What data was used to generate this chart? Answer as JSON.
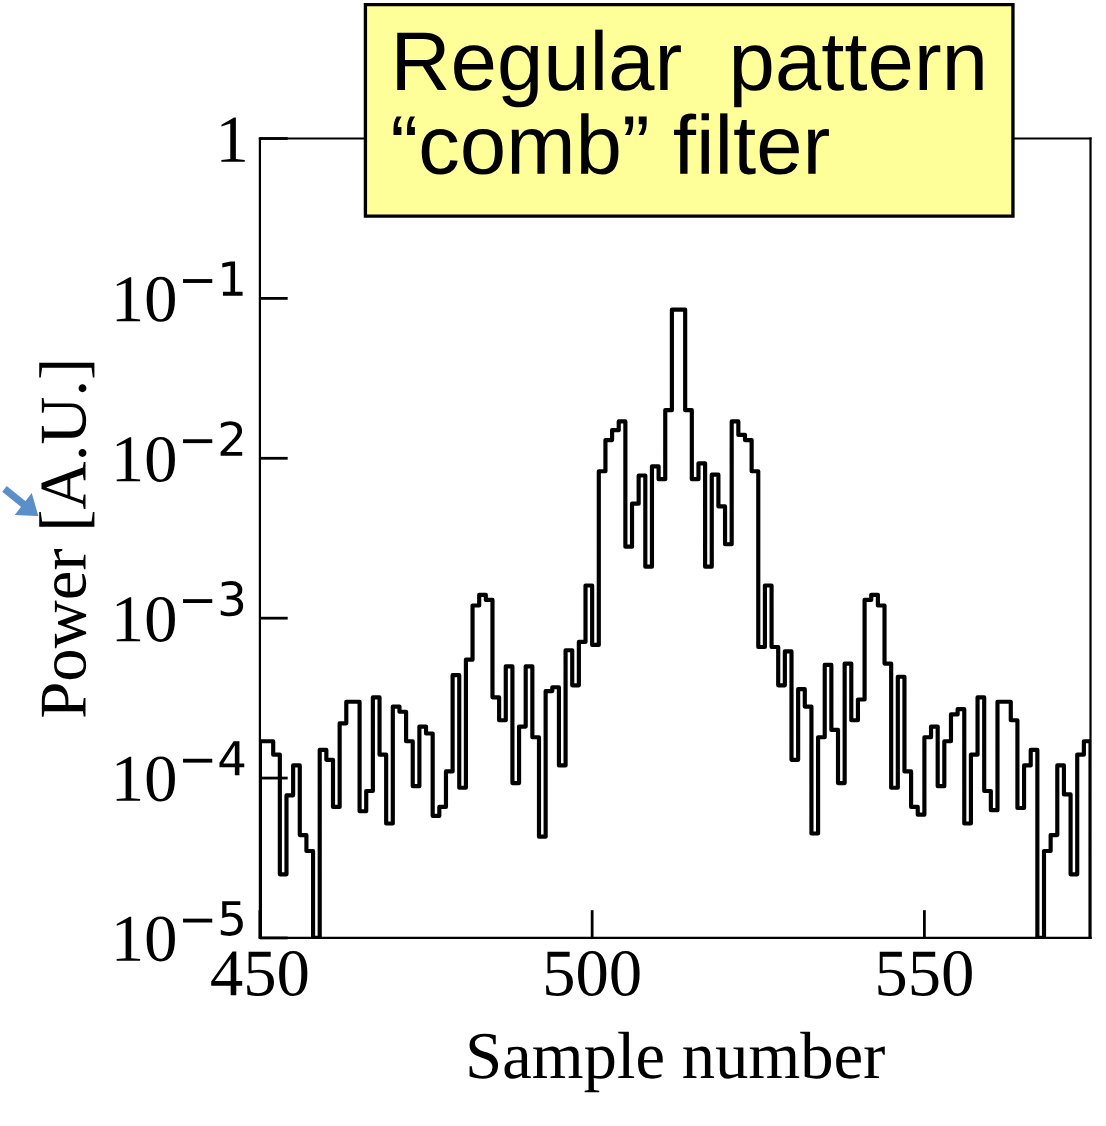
{
  "chart_data": {
    "type": "histogram",
    "xlabel": "Sample number",
    "ylabel": "Power [A.U.]",
    "annotations": [
      "Regular  pattern\n“comb” filter"
    ],
    "log": "y",
    "color": "#000000",
    "xlim": [
      450,
      575
    ],
    "xticks": [
      450,
      500,
      550
    ],
    "ylim": [
      1e-05,
      1
    ],
    "yticks": [
      {
        "value": 1e-05,
        "label": "10$^{−5}$"
      },
      {
        "value": 0.0001,
        "label": "10$^{−4}$"
      },
      {
        "value": 0.001,
        "label": "10$^{−3}$"
      },
      {
        "value": 0.01,
        "label": "10$^{−2}$"
      },
      {
        "value": 0.1,
        "label": "10$^{−1}$"
      },
      1
    ],
    "bins": [
      450,
      451,
      452,
      453,
      454,
      455,
      456,
      457,
      458,
      459,
      460,
      461,
      462,
      463,
      464,
      465,
      466,
      467,
      468,
      469,
      470,
      471,
      472,
      473,
      474,
      475,
      476,
      477,
      478,
      479,
      480,
      481,
      482,
      483,
      484,
      485,
      486,
      487,
      488,
      489,
      490,
      491,
      492,
      493,
      494,
      495,
      496,
      497,
      498,
      499,
      500,
      501,
      502,
      503,
      504,
      505,
      506,
      507,
      508,
      509,
      510,
      511,
      512,
      513,
      514,
      515,
      516,
      517,
      518,
      519,
      520,
      521,
      522,
      523,
      524,
      525,
      526,
      527,
      528,
      529,
      530,
      531,
      532,
      533,
      534,
      535,
      536,
      537,
      538,
      539,
      540,
      541,
      542,
      543,
      544,
      545,
      546,
      547,
      548,
      549,
      550,
      551,
      552,
      553,
      554,
      555,
      556,
      557,
      558,
      559,
      560,
      561,
      562,
      563,
      564,
      565,
      566,
      567,
      568,
      569,
      570,
      571,
      572,
      573,
      574,
      575
    ],
    "values": [
      0.00017,
      0.00017,
      0.00014,
      2.5e-05,
      7.8e-05,
      0.00012,
      4.4e-05,
      3.5e-05,
      1e-05,
      0.00015,
      0.00013,
      6.6e-05,
      0.00022,
      0.0003,
      0.0003,
      6.2e-05,
      8.3e-05,
      0.00032,
      0.00014,
      5.2e-05,
      0.00028,
      0.00026,
      0.00017,
      8.9e-05,
      0.00021,
      0.00019,
      5.8e-05,
      6.6e-05,
      0.00011,
      0.00044,
      8.7e-05,
      0.00055,
      0.0012,
      0.0014,
      0.0013,
      0.00032,
      0.00023,
      0.0005,
      9.3e-05,
      0.00021,
      0.0005,
      0.00018,
      4.3e-05,
      0.00035,
      0.00037,
      0.00012,
      0.00063,
      0.00038,
      0.00071,
      0.0016,
      0.00068,
      0.0083,
      0.013,
      0.015,
      0.017,
      0.0028,
      0.0052,
      0.0078,
      0.0021,
      0.0089,
      0.0074,
      0.02,
      0.085,
      0.085,
      0.02,
      0.0074,
      0.0093,
      0.0021,
      0.0079,
      0.005,
      0.0029,
      0.017,
      0.014,
      0.013,
      0.0083,
      0.00066,
      0.0016,
      0.00066,
      0.00038,
      0.00062,
      0.00013,
      0.00036,
      0.00028,
      4.5e-05,
      0.00018,
      0.00051,
      0.0002,
      9.3e-05,
      0.00052,
      0.00023,
      0.00031,
      0.0013,
      0.0014,
      0.0012,
      0.00052,
      8.7e-05,
      0.00043,
      0.00011,
      6.6e-05,
      5.9e-05,
      0.00018,
      0.00021,
      8.9e-05,
      0.00017,
      0.00025,
      0.00027,
      5.2e-05,
      0.00014,
      0.00032,
      8.3e-05,
      6.3e-05,
      0.0003,
      0.0003,
      0.00023,
      6.5e-05,
      0.00012,
      0.00015,
      1e-05,
      3.5e-05,
      4.4e-05,
      0.00012,
      7.9e-05,
      2.5e-05,
      0.00014,
      0.00017
    ]
  }
}
